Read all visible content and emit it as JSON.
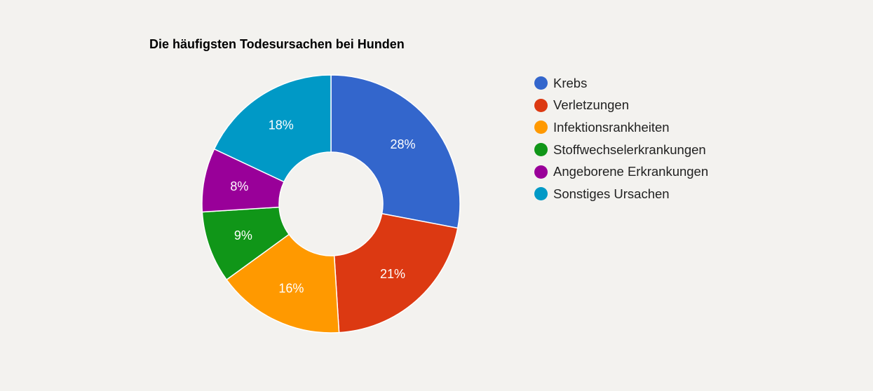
{
  "chart_data": {
    "type": "pie",
    "subtype": "donut",
    "title": "Die häufigsten Todesursachen bei Hunden",
    "categories": [
      "Krebs",
      "Verletzungen",
      "Infektionsrankheiten",
      "Stoffwechselerkrankungen",
      "Angeborene Erkrankungen",
      "Sonstiges Ursachen"
    ],
    "values": [
      28,
      21,
      16,
      9,
      8,
      18
    ],
    "labels": [
      "28%",
      "21%",
      "16%",
      "9%",
      "8%",
      "18%"
    ],
    "colors": [
      "#3366cc",
      "#dc3912",
      "#ff9900",
      "#109618",
      "#990099",
      "#0099c6"
    ],
    "legend_position": "right",
    "pie_hole": 0.4
  },
  "chart": {
    "title": "Die häufigsten Todesursachen bei Hunden"
  },
  "legend": {
    "items": [
      {
        "label": "Krebs",
        "color": "#3366cc"
      },
      {
        "label": "Verletzungen",
        "color": "#dc3912"
      },
      {
        "label": "Infektionsrankheiten",
        "color": "#ff9900"
      },
      {
        "label": "Stoffwechselerkrankungen",
        "color": "#109618"
      },
      {
        "label": "Angeborene Erkrankungen",
        "color": "#990099"
      },
      {
        "label": "Sonstiges Ursachen",
        "color": "#0099c6"
      }
    ]
  }
}
